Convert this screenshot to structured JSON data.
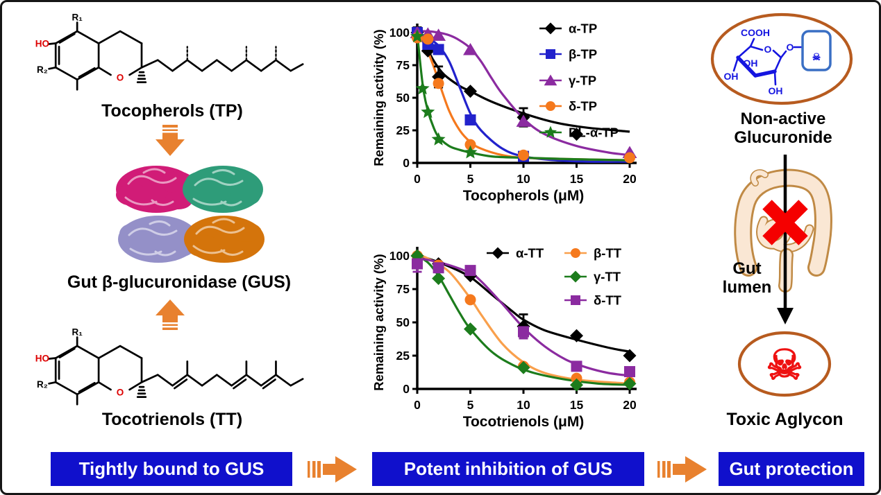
{
  "colors": {
    "banner_blue": "#1010CC",
    "arrow_orange": "#E8812F",
    "oval_brown": "#B75B1F",
    "skull_red": "#EE1111",
    "chem_red": "#DD0000",
    "sugar_blue": "#1515E0",
    "box_blue": "#3A6FC4",
    "x_red": "#F50000",
    "intestine_fill": "#FAE7D4",
    "intestine_outline": "#C08A45",
    "gus": {
      "magenta": "#D11C77",
      "teal": "#2E9C79",
      "lavender": "#9490C8",
      "orange": "#D4740B"
    }
  },
  "left_column": {
    "tp_label": "Tocopherols (TP)",
    "gus_label": "Gut β-glucuronidase (GUS)",
    "tt_label": "Tocotrienols (TT)",
    "structure_labels": {
      "hydroxyl": "HO",
      "r1": "R₁",
      "r2": "R₂",
      "ring_oxygen": "O"
    }
  },
  "right_column": {
    "glucuronide_label_line1": "Non-active",
    "glucuronide_label_line2": "Glucuronide",
    "gut_lumen_line1": "Gut",
    "gut_lumen_line2": "lumen",
    "toxic_label": "Toxic Aglycon",
    "skull_icon": "☠",
    "sugar_labels": {
      "cooh": "COOH",
      "ring_oxygen": "O",
      "glycosidic_oxygen": "O",
      "oh_inner": "OH",
      "oh_left": "OH",
      "oh_bottom": "OH"
    }
  },
  "banner": {
    "steps": [
      "Tightly bound to GUS",
      "Potent inhibition of GUS",
      "Gut protection"
    ]
  },
  "chart_data": [
    {
      "type": "scatter",
      "title": "",
      "xlabel": "Tocopherols (μM)",
      "ylabel": "Remaining activity (%)",
      "xlim": [
        0,
        20
      ],
      "ylim": [
        0,
        100
      ],
      "xticks": [
        0,
        5,
        10,
        15,
        20
      ],
      "yticks": [
        0,
        25,
        50,
        75,
        100
      ],
      "grid": false,
      "legend_position": "inside-top-right",
      "legend_xy": [
        [
          242,
          26
        ],
        [
          242,
          63
        ],
        [
          242,
          101
        ],
        [
          242,
          138
        ],
        [
          242,
          176
        ]
      ],
      "series": [
        {
          "name": "α-TP",
          "color": "#000000",
          "marker": "diamond",
          "points": [
            [
              0,
              100
            ],
            [
              1,
              86
            ],
            [
              2,
              66
            ],
            [
              5,
              55
            ],
            [
              10,
              35
            ],
            [
              15,
              22
            ]
          ],
          "error_bars": [
            [
              0,
              100,
              4
            ],
            [
              2,
              66,
              8
            ],
            [
              10,
              35,
              7
            ]
          ],
          "curve": [
            [
              0,
              100
            ],
            [
              0.7,
              92
            ],
            [
              1.5,
              79
            ],
            [
              2.5,
              68
            ],
            [
              4,
              59
            ],
            [
              5,
              55
            ],
            [
              7,
              47
            ],
            [
              10,
              38
            ],
            [
              13,
              31
            ],
            [
              16,
              27
            ],
            [
              20,
              24
            ]
          ]
        },
        {
          "name": "β-TP",
          "color": "#2222CC",
          "marker": "square",
          "points": [
            [
              0,
              100
            ],
            [
              1,
              91
            ],
            [
              2,
              87
            ],
            [
              5,
              33
            ],
            [
              10,
              5
            ]
          ],
          "curve": [
            [
              0,
              100
            ],
            [
              1,
              96
            ],
            [
              2,
              90
            ],
            [
              3,
              78
            ],
            [
              4,
              58
            ],
            [
              5,
              38
            ],
            [
              6,
              25
            ],
            [
              8,
              11
            ],
            [
              10,
              5
            ],
            [
              13,
              2
            ],
            [
              16,
              1
            ],
            [
              20,
              1
            ]
          ]
        },
        {
          "name": "γ-TP",
          "color": "#8B2BA0",
          "marker": "triangle",
          "points": [
            [
              0,
              100
            ],
            [
              1,
              99
            ],
            [
              2,
              98
            ],
            [
              5,
              87
            ],
            [
              10,
              32
            ],
            [
              20,
              8
            ]
          ],
          "curve": [
            [
              0,
              101
            ],
            [
              1,
              101
            ],
            [
              2,
              100
            ],
            [
              3,
              98
            ],
            [
              4,
              94
            ],
            [
              5,
              88
            ],
            [
              6,
              78
            ],
            [
              7,
              65
            ],
            [
              8,
              53
            ],
            [
              10,
              34
            ],
            [
              12,
              22
            ],
            [
              15,
              13
            ],
            [
              18,
              8
            ],
            [
              20,
              6
            ]
          ]
        },
        {
          "name": "δ-TP",
          "color": "#F5791D",
          "marker": "circle",
          "points": [
            [
              0,
              96
            ],
            [
              1,
              95
            ],
            [
              2,
              61
            ],
            [
              5,
              14
            ],
            [
              10,
              6
            ],
            [
              20,
              4
            ]
          ],
          "curve": [
            [
              0,
              97
            ],
            [
              0.7,
              91
            ],
            [
              1.5,
              75
            ],
            [
              2,
              63
            ],
            [
              3,
              40
            ],
            [
              4,
              25
            ],
            [
              5,
              16
            ],
            [
              6,
              11
            ],
            [
              8,
              6
            ],
            [
              10,
              4
            ],
            [
              14,
              3
            ],
            [
              20,
              2
            ]
          ]
        },
        {
          "name": "DL-α-TP",
          "color": "#1C7C1C",
          "marker": "star",
          "points": [
            [
              0,
              97
            ],
            [
              0.5,
              57
            ],
            [
              1,
              39
            ],
            [
              2,
              18
            ],
            [
              5,
              8
            ]
          ],
          "curve": [
            [
              0,
              99
            ],
            [
              0.3,
              75
            ],
            [
              0.6,
              55
            ],
            [
              1,
              40
            ],
            [
              1.5,
              28
            ],
            [
              2,
              20
            ],
            [
              3,
              13
            ],
            [
              4,
              10
            ],
            [
              5,
              8
            ],
            [
              7,
              5
            ],
            [
              10,
              4
            ],
            [
              14,
              3
            ],
            [
              20,
              2
            ]
          ]
        }
      ]
    },
    {
      "type": "scatter",
      "title": "",
      "xlabel": "Tocotrienols (μM)",
      "ylabel": "Remaining activity (%)",
      "xlim": [
        0,
        20
      ],
      "ylim": [
        0,
        100
      ],
      "xticks": [
        0,
        5,
        10,
        15,
        20
      ],
      "yticks": [
        0,
        25,
        50,
        75,
        100
      ],
      "grid": false,
      "legend_position": "inside-top",
      "legend_xy": [
        [
          166,
          26
        ],
        [
          278,
          26
        ],
        [
          278,
          60
        ],
        [
          278,
          94
        ]
      ],
      "series": [
        {
          "name": "α-TT",
          "color": "#000000",
          "marker": "diamond",
          "points": [
            [
              0,
              100
            ],
            [
              2,
              94
            ],
            [
              5,
              85
            ],
            [
              10,
              47
            ],
            [
              15,
              40
            ],
            [
              20,
              25
            ]
          ],
          "error_bars": [
            [
              10,
              47,
              9
            ]
          ],
          "curve": [
            [
              0,
              100
            ],
            [
              1,
              98
            ],
            [
              3,
              92
            ],
            [
              5,
              84
            ],
            [
              7,
              71
            ],
            [
              9,
              58
            ],
            [
              10,
              52
            ],
            [
              12,
              44
            ],
            [
              15,
              37
            ],
            [
              18,
              31
            ],
            [
              20,
              28
            ]
          ]
        },
        {
          "name": "β-TT",
          "color": "#F5791D",
          "line_color": "#F9A04C",
          "marker": "circle",
          "points": [
            [
              0,
              100
            ],
            [
              2,
              93
            ],
            [
              5,
              67
            ],
            [
              10,
              17
            ],
            [
              15,
              8
            ],
            [
              20,
              5
            ]
          ],
          "curve": [
            [
              0,
              101
            ],
            [
              1,
              98
            ],
            [
              3,
              88
            ],
            [
              5,
              68
            ],
            [
              6,
              56
            ],
            [
              8,
              34
            ],
            [
              10,
              20
            ],
            [
              12,
              12
            ],
            [
              15,
              7
            ],
            [
              18,
              5
            ],
            [
              20,
              4
            ]
          ]
        },
        {
          "name": "γ-TT",
          "color": "#1C7C1C",
          "marker": "diamond",
          "points": [
            [
              0,
              100
            ],
            [
              2,
              83
            ],
            [
              5,
              45
            ],
            [
              10,
              16
            ],
            [
              15,
              3
            ],
            [
              20,
              4
            ]
          ],
          "curve": [
            [
              0,
              100
            ],
            [
              1,
              95
            ],
            [
              2,
              85
            ],
            [
              3,
              71
            ],
            [
              4,
              57
            ],
            [
              5,
              45
            ],
            [
              7,
              28
            ],
            [
              9,
              18
            ],
            [
              11,
              12
            ],
            [
              14,
              7
            ],
            [
              17,
              4
            ],
            [
              20,
              3
            ]
          ]
        },
        {
          "name": "δ-TT",
          "color": "#8B2BA0",
          "marker": "square",
          "points": [
            [
              0,
              94
            ],
            [
              2,
              91
            ],
            [
              5,
              89
            ],
            [
              10,
              43
            ],
            [
              15,
              17
            ],
            [
              20,
              13
            ]
          ],
          "error_bars": [
            [
              0,
              94,
              6
            ],
            [
              10,
              43,
              5
            ]
          ],
          "curve": [
            [
              0,
              98
            ],
            [
              1,
              97
            ],
            [
              3,
              93
            ],
            [
              5,
              87
            ],
            [
              6,
              81
            ],
            [
              8,
              64
            ],
            [
              10,
              46
            ],
            [
              12,
              32
            ],
            [
              14,
              22
            ],
            [
              16,
              16
            ],
            [
              18,
              12
            ],
            [
              20,
              10
            ]
          ]
        }
      ]
    }
  ]
}
